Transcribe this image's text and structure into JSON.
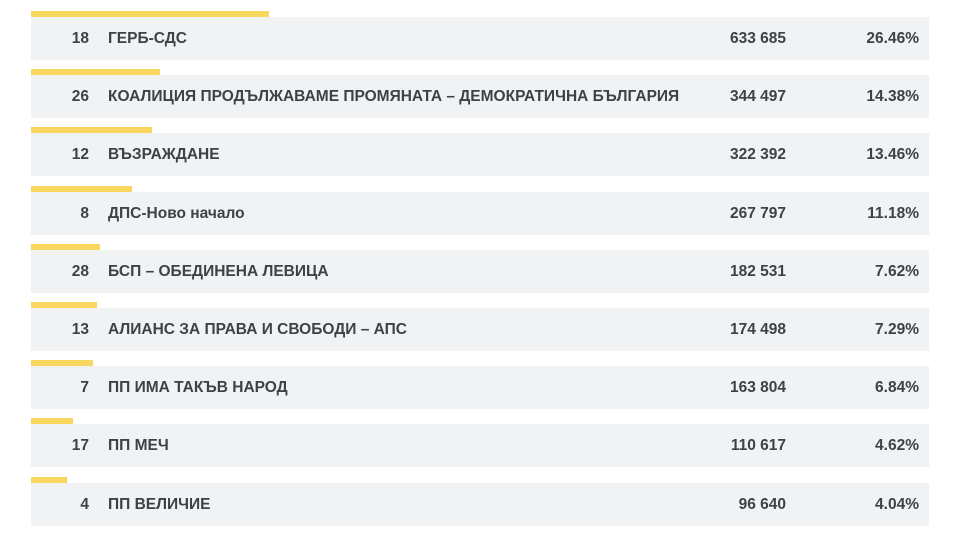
{
  "results": [
    {
      "number": "18",
      "name": "ГЕРБ-СДС",
      "votes": "633 685",
      "percent": "26.46%",
      "share": 0.2646
    },
    {
      "number": "26",
      "name": "КОАЛИЦИЯ ПРОДЪЛЖАВАМЕ ПРОМЯНАТА – ДЕМОКРАТИЧНА БЪЛГАРИЯ",
      "votes": "344 497",
      "percent": "14.38%",
      "share": 0.1438
    },
    {
      "number": "12",
      "name": "ВЪЗРАЖДАНЕ",
      "votes": "322 392",
      "percent": "13.46%",
      "share": 0.1346
    },
    {
      "number": "8",
      "name": "ДПС-Ново начало",
      "votes": "267 797",
      "percent": "11.18%",
      "share": 0.1118
    },
    {
      "number": "28",
      "name": "БСП – ОБЕДИНЕНА ЛЕВИЦА",
      "votes": "182 531",
      "percent": "7.62%",
      "share": 0.0762
    },
    {
      "number": "13",
      "name": "АЛИАНС ЗА ПРАВА И СВОБОДИ – АПС",
      "votes": "174 498",
      "percent": "7.29%",
      "share": 0.0729
    },
    {
      "number": "7",
      "name": "ПП ИМА ТАКЪВ НАРОД",
      "votes": "163 804",
      "percent": "6.84%",
      "share": 0.0684
    },
    {
      "number": "17",
      "name": "ПП МЕЧ",
      "votes": "110 617",
      "percent": "4.62%",
      "share": 0.0462
    },
    {
      "number": "4",
      "name": "ПП ВЕЛИЧИЕ",
      "votes": "96 640",
      "percent": "4.04%",
      "share": 0.0404
    }
  ],
  "colors": {
    "bar": "#f9d65d",
    "row_background": "#f1f2f3",
    "text": "#3d4248"
  }
}
